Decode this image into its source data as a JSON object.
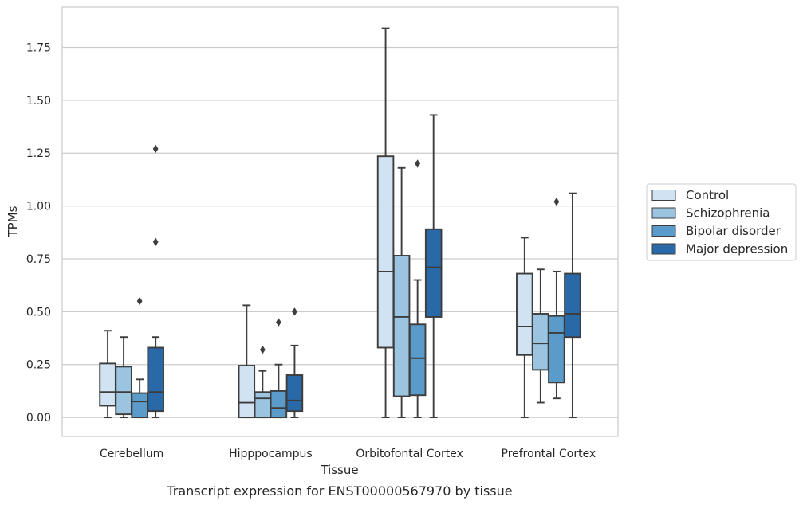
{
  "caption": "Transcript expression for ENST00000567970 by tissue",
  "chart_data": {
    "type": "boxplot",
    "xlabel": "Tissue",
    "ylabel": "TPMs",
    "ylim": [
      -0.09,
      1.94
    ],
    "yticks": [
      "0.00",
      "0.25",
      "0.50",
      "0.75",
      "1.00",
      "1.25",
      "1.50",
      "1.75"
    ],
    "grid": "horizontal",
    "legend_position": "right",
    "categories": [
      "Cerebellum",
      "Hipppocampus",
      "Orbitofontal Cortex",
      "Prefrontal Cortex"
    ],
    "series": [
      {
        "name": "Control",
        "color": "#d1e2f2",
        "boxes": [
          {
            "whislo": 0.0,
            "q1": 0.055,
            "med": 0.12,
            "q3": 0.255,
            "whishi": 0.41,
            "fliers": []
          },
          {
            "whislo": 0.0,
            "q1": 0.0,
            "med": 0.07,
            "q3": 0.245,
            "whishi": 0.53,
            "fliers": []
          },
          {
            "whislo": 0.0,
            "q1": 0.33,
            "med": 0.69,
            "q3": 1.235,
            "whishi": 1.84,
            "fliers": []
          },
          {
            "whislo": 0.0,
            "q1": 0.295,
            "med": 0.43,
            "q3": 0.68,
            "whishi": 0.85,
            "fliers": []
          }
        ]
      },
      {
        "name": "Schizophrenia",
        "color": "#9ac4df",
        "boxes": [
          {
            "whislo": 0.0,
            "q1": 0.015,
            "med": 0.12,
            "q3": 0.24,
            "whishi": 0.38,
            "fliers": []
          },
          {
            "whislo": 0.0,
            "q1": 0.0,
            "med": 0.09,
            "q3": 0.12,
            "whishi": 0.22,
            "fliers": [
              0.32
            ]
          },
          {
            "whislo": 0.0,
            "q1": 0.1,
            "med": 0.475,
            "q3": 0.765,
            "whishi": 1.18,
            "fliers": []
          },
          {
            "whislo": 0.07,
            "q1": 0.225,
            "med": 0.35,
            "q3": 0.49,
            "whishi": 0.7,
            "fliers": []
          }
        ]
      },
      {
        "name": "Bipolar disorder",
        "color": "#5b9bc9",
        "boxes": [
          {
            "whislo": 0.0,
            "q1": 0.0,
            "med": 0.075,
            "q3": 0.115,
            "whishi": 0.18,
            "fliers": [
              0.55
            ]
          },
          {
            "whislo": 0.0,
            "q1": 0.0,
            "med": 0.045,
            "q3": 0.125,
            "whishi": 0.25,
            "fliers": [
              0.45
            ]
          },
          {
            "whislo": 0.0,
            "q1": 0.105,
            "med": 0.28,
            "q3": 0.44,
            "whishi": 0.65,
            "fliers": [
              1.2
            ]
          },
          {
            "whislo": 0.09,
            "q1": 0.165,
            "med": 0.4,
            "q3": 0.48,
            "whishi": 0.69,
            "fliers": [
              1.02
            ]
          }
        ]
      },
      {
        "name": "Major depression",
        "color": "#2a69a8",
        "boxes": [
          {
            "whislo": 0.0,
            "q1": 0.03,
            "med": 0.12,
            "q3": 0.33,
            "whishi": 0.38,
            "fliers": [
              0.83,
              1.27
            ]
          },
          {
            "whislo": 0.0,
            "q1": 0.03,
            "med": 0.08,
            "q3": 0.2,
            "whishi": 0.34,
            "fliers": [
              0.5
            ]
          },
          {
            "whislo": 0.0,
            "q1": 0.475,
            "med": 0.71,
            "q3": 0.89,
            "whishi": 1.43,
            "fliers": []
          },
          {
            "whislo": 0.0,
            "q1": 0.38,
            "med": 0.49,
            "q3": 0.68,
            "whishi": 1.06,
            "fliers": []
          }
        ]
      }
    ]
  }
}
